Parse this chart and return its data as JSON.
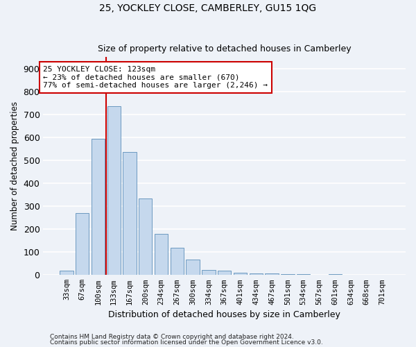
{
  "title": "25, YOCKLEY CLOSE, CAMBERLEY, GU15 1QG",
  "subtitle": "Size of property relative to detached houses in Camberley",
  "xlabel": "Distribution of detached houses by size in Camberley",
  "ylabel": "Number of detached properties",
  "bar_color": "#c5d8ed",
  "bar_edge_color": "#5b8db8",
  "categories": [
    "33sqm",
    "67sqm",
    "100sqm",
    "133sqm",
    "167sqm",
    "200sqm",
    "234sqm",
    "267sqm",
    "300sqm",
    "334sqm",
    "367sqm",
    "401sqm",
    "434sqm",
    "467sqm",
    "501sqm",
    "534sqm",
    "567sqm",
    "601sqm",
    "634sqm",
    "668sqm",
    "701sqm"
  ],
  "values": [
    20,
    270,
    595,
    735,
    535,
    335,
    178,
    118,
    68,
    22,
    18,
    10,
    8,
    6,
    5,
    5,
    0,
    5,
    0,
    0,
    0
  ],
  "vline_x": 2.5,
  "vline_color": "#cc0000",
  "annotation_text": "25 YOCKLEY CLOSE: 123sqm\n← 23% of detached houses are smaller (670)\n77% of semi-detached houses are larger (2,246) →",
  "annotation_box_color": "#cc0000",
  "ylim": [
    0,
    950
  ],
  "yticks": [
    0,
    100,
    200,
    300,
    400,
    500,
    600,
    700,
    800,
    900
  ],
  "footnote1": "Contains HM Land Registry data © Crown copyright and database right 2024.",
  "footnote2": "Contains public sector information licensed under the Open Government Licence v3.0.",
  "background_color": "#eef2f8",
  "grid_color": "#ffffff"
}
